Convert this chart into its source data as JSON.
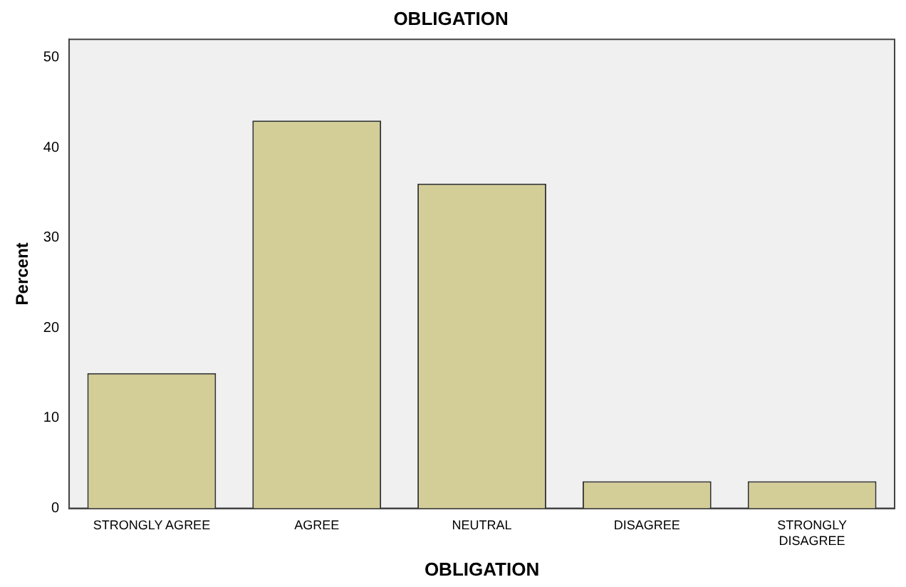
{
  "chart_data": {
    "type": "bar",
    "title": "OBLIGATION",
    "xlabel": "OBLIGATION",
    "ylabel": "Percent",
    "categories": [
      "STRONGLY AGREE",
      "AGREE",
      "NEUTRAL",
      "DISAGREE",
      "STRONGLY DISAGREE"
    ],
    "values": [
      15,
      43,
      36,
      3,
      3
    ],
    "color": "#d3ce97",
    "ylim": [
      0,
      52
    ],
    "yticks": [
      0,
      10,
      20,
      30,
      40,
      50
    ],
    "grid": false,
    "legend": false
  }
}
